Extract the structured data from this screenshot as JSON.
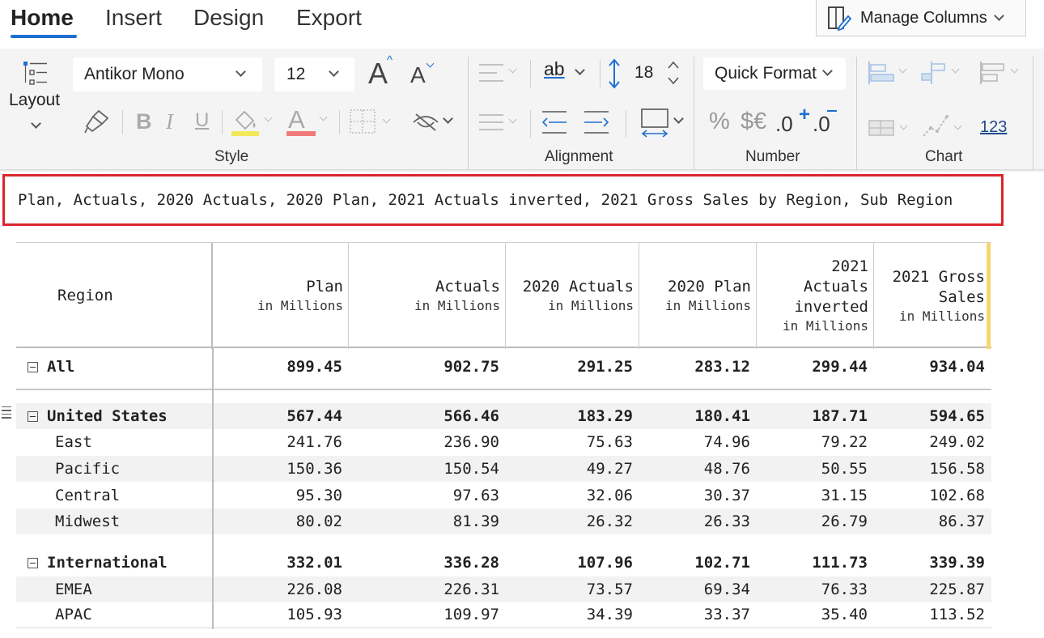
{
  "tabs": [
    {
      "label": "Home",
      "active": true
    },
    {
      "label": "Insert",
      "active": false
    },
    {
      "label": "Design",
      "active": false
    },
    {
      "label": "Export",
      "active": false
    }
  ],
  "manage_columns": {
    "label": "Manage Columns",
    "icon": "manage-columns-icon"
  },
  "ribbon": {
    "layout_label": "Layout",
    "font_family": "Antikor Mono",
    "font_size": "12",
    "line_height_value": "18",
    "quick_format_label": "Quick Format",
    "number_123": "123",
    "groups": {
      "style": "Style",
      "alignment": "Alignment",
      "number": "Number",
      "chart": "Chart"
    },
    "glyphs": {
      "bold": "B",
      "italic": "I",
      "underline": "U",
      "font_color": "A",
      "grow": "A",
      "shrink": "A",
      "wrap": "ab",
      "percent": "%",
      "currency": "$€",
      "dec_inc": ".0",
      "dec_dec": ".0"
    },
    "colors": {
      "highlight": "#f3e85a",
      "font_color": "#f07a7a",
      "accent": "#1f6fd1"
    }
  },
  "field_bar": {
    "text": "Plan, Actuals, 2020 Actuals, 2020 Plan, 2021 Actuals inverted, 2021 Gross Sales by Region, Sub Region",
    "border_color": "#d9262d"
  },
  "table": {
    "columns": [
      {
        "title": "Region",
        "sub": ""
      },
      {
        "title": "Plan",
        "sub": "in Millions"
      },
      {
        "title": "Actuals",
        "sub": "in Millions"
      },
      {
        "title": "2020 Actuals",
        "sub": "in Millions"
      },
      {
        "title": "2020 Plan",
        "sub": "in Millions"
      },
      {
        "title_lines": [
          "2021",
          "Actuals",
          "inverted"
        ],
        "sub": "in Millions"
      },
      {
        "title_lines": [
          "2021 Gross",
          "Sales"
        ],
        "sub": "in Millions"
      }
    ],
    "rows": [
      {
        "label": "All",
        "values": [
          "899.45",
          "902.75",
          "291.25",
          "283.12",
          "299.44",
          "934.04"
        ]
      },
      {
        "label": "United States",
        "values": [
          "567.44",
          "566.46",
          "183.29",
          "180.41",
          "187.71",
          "594.65"
        ]
      },
      {
        "label": "East",
        "values": [
          "241.76",
          "236.90",
          "75.63",
          "74.96",
          "79.22",
          "249.02"
        ]
      },
      {
        "label": "Pacific",
        "values": [
          "150.36",
          "150.54",
          "49.27",
          "48.76",
          "50.55",
          "156.58"
        ]
      },
      {
        "label": "Central",
        "values": [
          "95.30",
          "97.63",
          "32.06",
          "30.37",
          "31.15",
          "102.68"
        ]
      },
      {
        "label": "Midwest",
        "values": [
          "80.02",
          "81.39",
          "26.32",
          "26.33",
          "26.79",
          "86.37"
        ]
      },
      {
        "label": "International",
        "values": [
          "332.01",
          "336.28",
          "107.96",
          "102.71",
          "111.73",
          "339.39"
        ]
      },
      {
        "label": "EMEA",
        "values": [
          "226.08",
          "226.31",
          "73.57",
          "69.34",
          "76.33",
          "225.87"
        ]
      },
      {
        "label": "APAC",
        "values": [
          "105.93",
          "109.97",
          "34.39",
          "33.37",
          "35.40",
          "113.52"
        ]
      }
    ]
  }
}
